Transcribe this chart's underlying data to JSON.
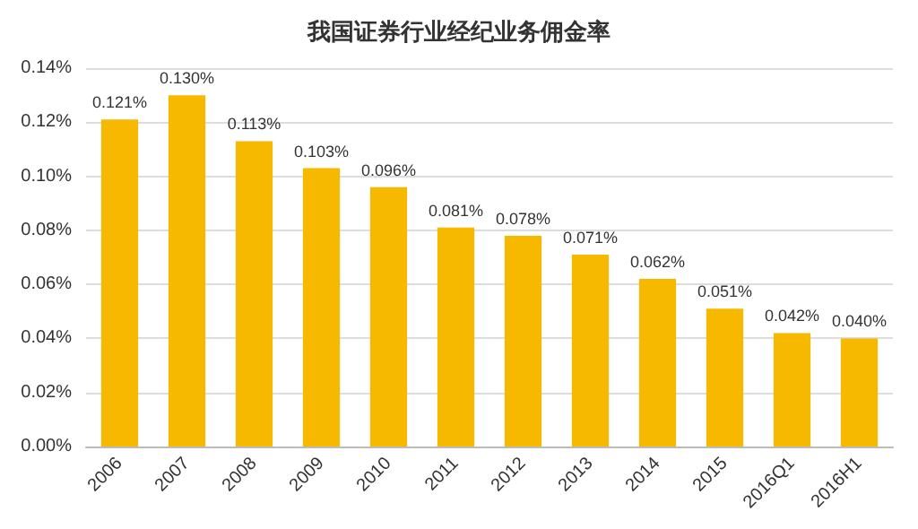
{
  "chart_data": {
    "type": "bar",
    "title": "我国证券行业经纪业务佣金率",
    "categories": [
      "2006",
      "2007",
      "2008",
      "2009",
      "2010",
      "2011",
      "2012",
      "2013",
      "2014",
      "2015",
      "2016Q1",
      "2016H1"
    ],
    "values": [
      0.121,
      0.13,
      0.113,
      0.103,
      0.096,
      0.081,
      0.078,
      0.071,
      0.062,
      0.051,
      0.042,
      0.04
    ],
    "value_labels": [
      "0.121%",
      "0.130%",
      "0.113%",
      "0.103%",
      "0.096%",
      "0.081%",
      "0.078%",
      "0.071%",
      "0.062%",
      "0.051%",
      "0.042%",
      "0.040%"
    ],
    "color": "#f7b900",
    "ylim": [
      0,
      0.14
    ],
    "yticks": [
      {
        "value": 0,
        "label": "0.00%"
      },
      {
        "value": 0.02,
        "label": "0.02%"
      },
      {
        "value": 0.04,
        "label": "0.04%"
      },
      {
        "value": 0.06,
        "label": "0.06%"
      },
      {
        "value": 0.08,
        "label": "0.08%"
      },
      {
        "value": 0.1,
        "label": "0.10%"
      },
      {
        "value": 0.12,
        "label": "0.12%"
      },
      {
        "value": 0.14,
        "label": "0.14%"
      }
    ],
    "grid": "y"
  }
}
